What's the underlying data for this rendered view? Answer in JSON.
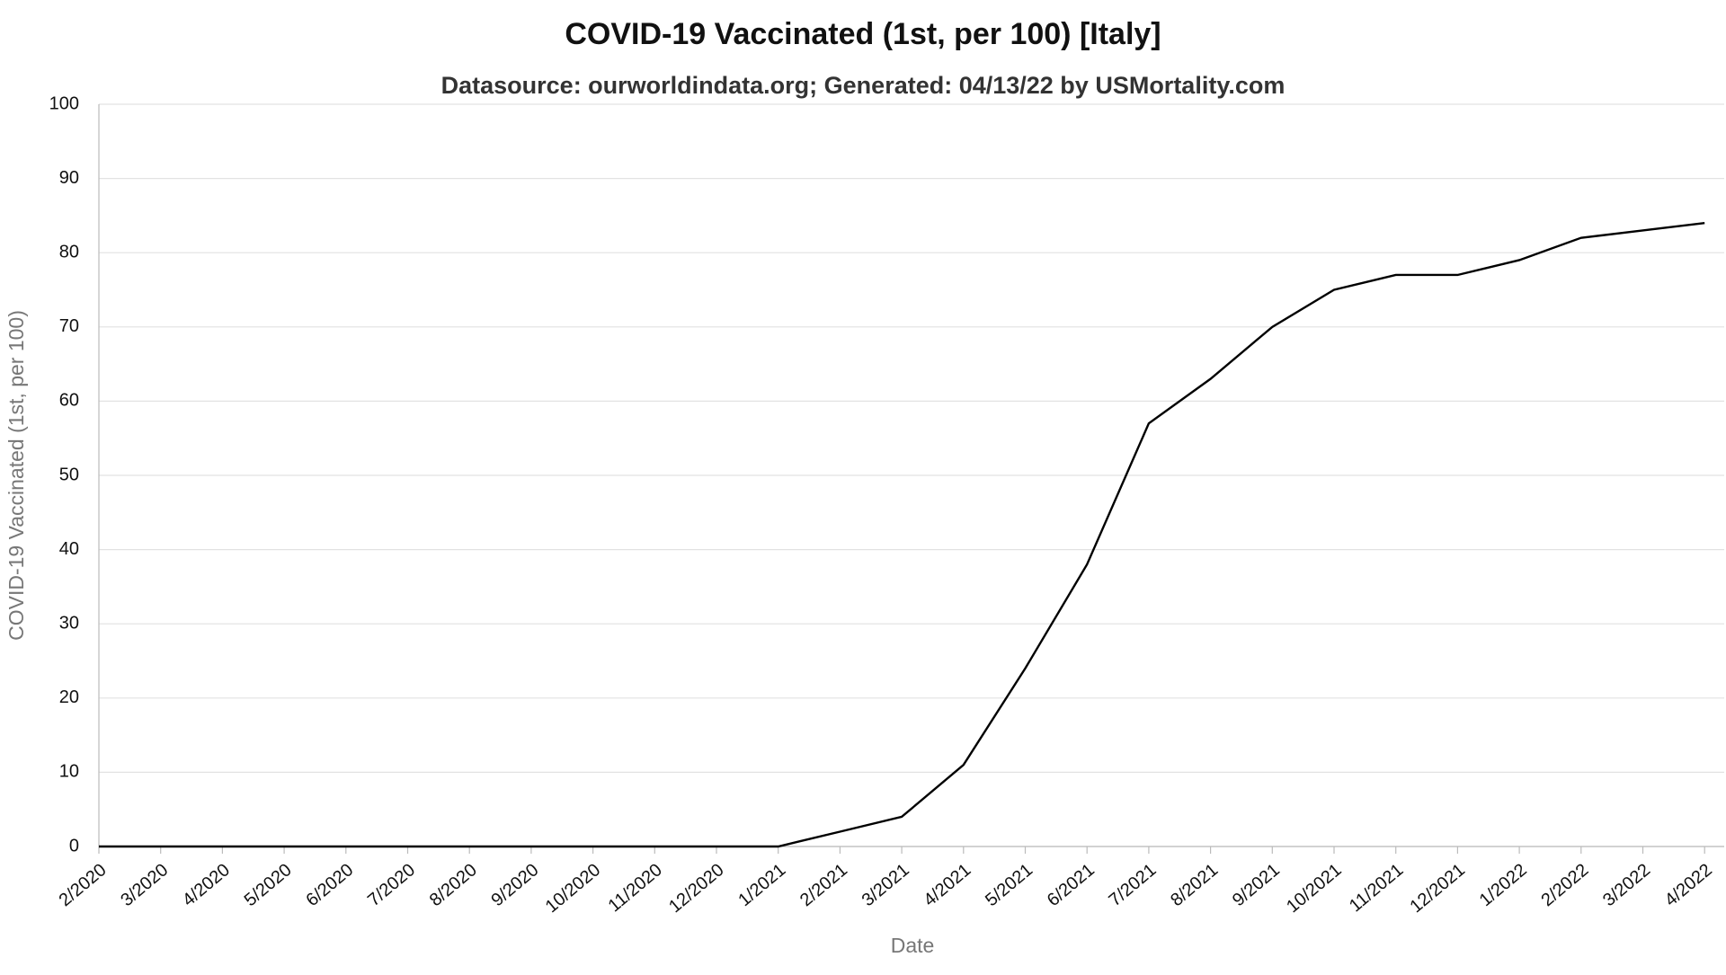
{
  "chart_data": {
    "type": "line",
    "title": "COVID-19 Vaccinated (1st, per 100) [Italy]",
    "subtitle": "Datasource: ourworldindata.org; Generated: 04/13/22 by USMortality.com",
    "x_label": "Date",
    "y_label": "COVID-19 Vaccinated (1st, per 100)",
    "categories": [
      "2/2020",
      "3/2020",
      "4/2020",
      "5/2020",
      "6/2020",
      "7/2020",
      "8/2020",
      "9/2020",
      "10/2020",
      "11/2020",
      "12/2020",
      "1/2021",
      "2/2021",
      "3/2021",
      "4/2021",
      "5/2021",
      "6/2021",
      "7/2021",
      "8/2021",
      "9/2021",
      "10/2021",
      "11/2021",
      "12/2021",
      "1/2022",
      "2/2022",
      "3/2022",
      "4/2022"
    ],
    "series": [
      {
        "name": "Italy",
        "color": "#000000",
        "values": [
          0,
          0,
          0,
          0,
          0,
          0,
          0,
          0,
          0,
          0,
          0,
          0,
          2,
          4,
          11,
          24,
          38,
          57,
          63,
          70,
          75,
          77,
          77,
          79,
          82,
          83,
          84
        ]
      }
    ],
    "ylim": [
      0,
      100
    ],
    "yticks": [
      0,
      10,
      20,
      30,
      40,
      50,
      60,
      70,
      80,
      90,
      100
    ],
    "grid": true
  }
}
